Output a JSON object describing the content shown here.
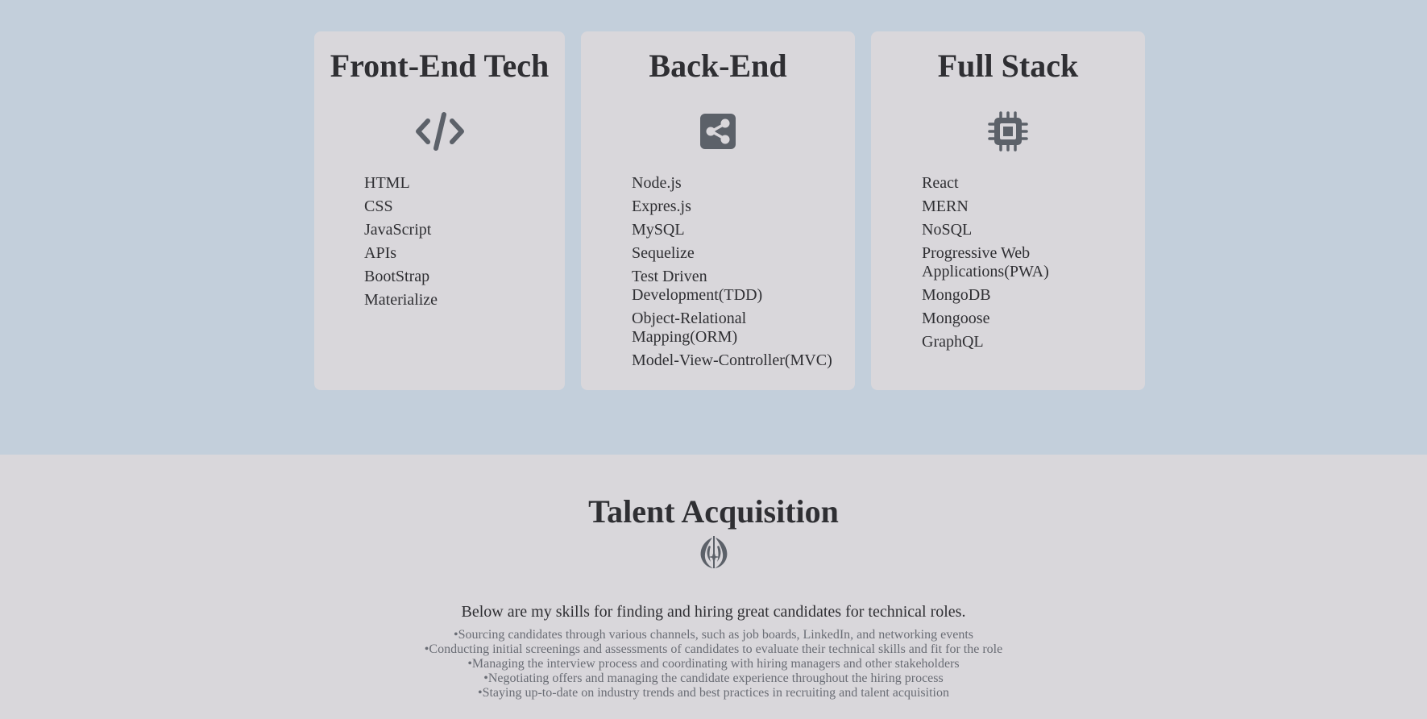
{
  "cards": [
    {
      "title": "Front-End Tech",
      "icon": "code-icon",
      "items": [
        "HTML",
        "CSS",
        "JavaScript",
        "APIs",
        "BootStrap",
        "Materialize"
      ]
    },
    {
      "title": "Back-End",
      "icon": "share-icon",
      "items": [
        "Node.js",
        "Expres.js",
        "MySQL",
        "Sequelize",
        "Test Driven Development(TDD)",
        "Object-Relational Mapping(ORM)",
        "Model-View-Controller(MVC)"
      ]
    },
    {
      "title": "Full Stack",
      "icon": "microchip-icon",
      "items": [
        "React",
        "MERN",
        "NoSQL",
        "Progressive Web Applications(PWA)",
        "MongoDB",
        "Mongoose",
        "GraphQL"
      ]
    }
  ],
  "talent": {
    "title": "Talent Acquisition",
    "icon": "jedi-order-icon",
    "intro": "Below are my skills for finding and hiring great candidates for technical roles.",
    "bullets": [
      "•Sourcing candidates through various channels, such as job boards, LinkedIn, and networking events",
      "•Conducting initial screenings and assessments of candidates to evaluate their technical skills and fit for the role",
      "•Managing the interview process and coordinating with hiring managers and other stakeholders",
      "•Negotiating offers and managing the candidate experience throughout the hiring process",
      "•Staying up-to-date on industry trends and best practices in recruiting and talent acquisition"
    ]
  },
  "colors": {
    "top_bg": "#c3cfdb",
    "card_bg": "#d9d7db",
    "icon": "#5c6169",
    "text": "#2f2f33"
  }
}
